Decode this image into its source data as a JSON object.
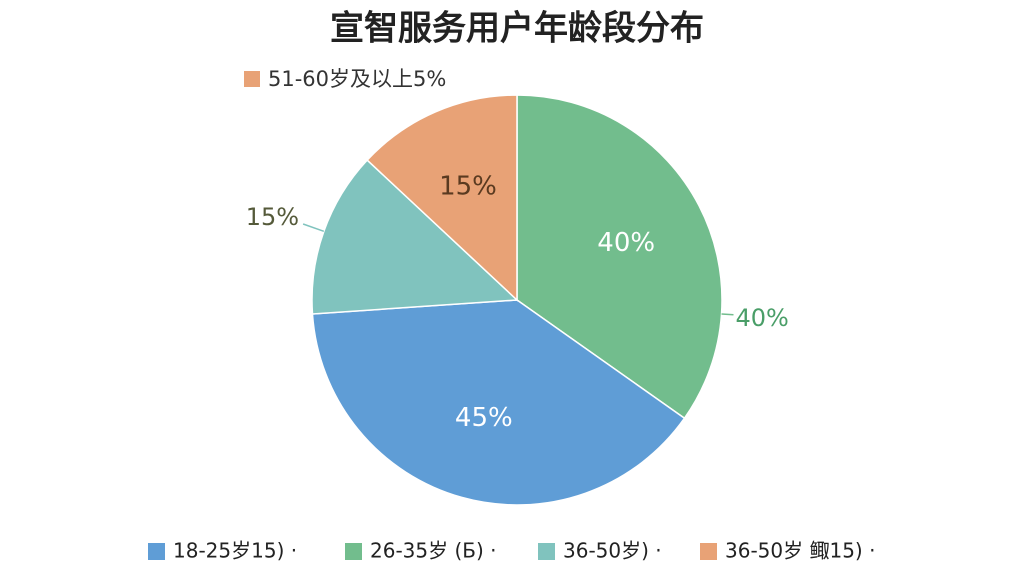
{
  "chart_data": {
    "type": "pie",
    "title": "宣智服务用户年龄段分布",
    "categories": [
      "18-25岁15) ·",
      "26-35岁 (Б) ·",
      "36-50岁) ·",
      "36-50岁 鲰15) ·"
    ],
    "values": [
      45,
      40,
      15,
      15
    ],
    "value_labels": [
      "45%",
      "40%",
      "15%",
      "15%"
    ],
    "colors": [
      "#5f9dd6",
      "#72bd8d",
      "#80c3be",
      "#e8a276"
    ],
    "annotation": "51-60岁及以上5%",
    "legend": "bottom"
  }
}
